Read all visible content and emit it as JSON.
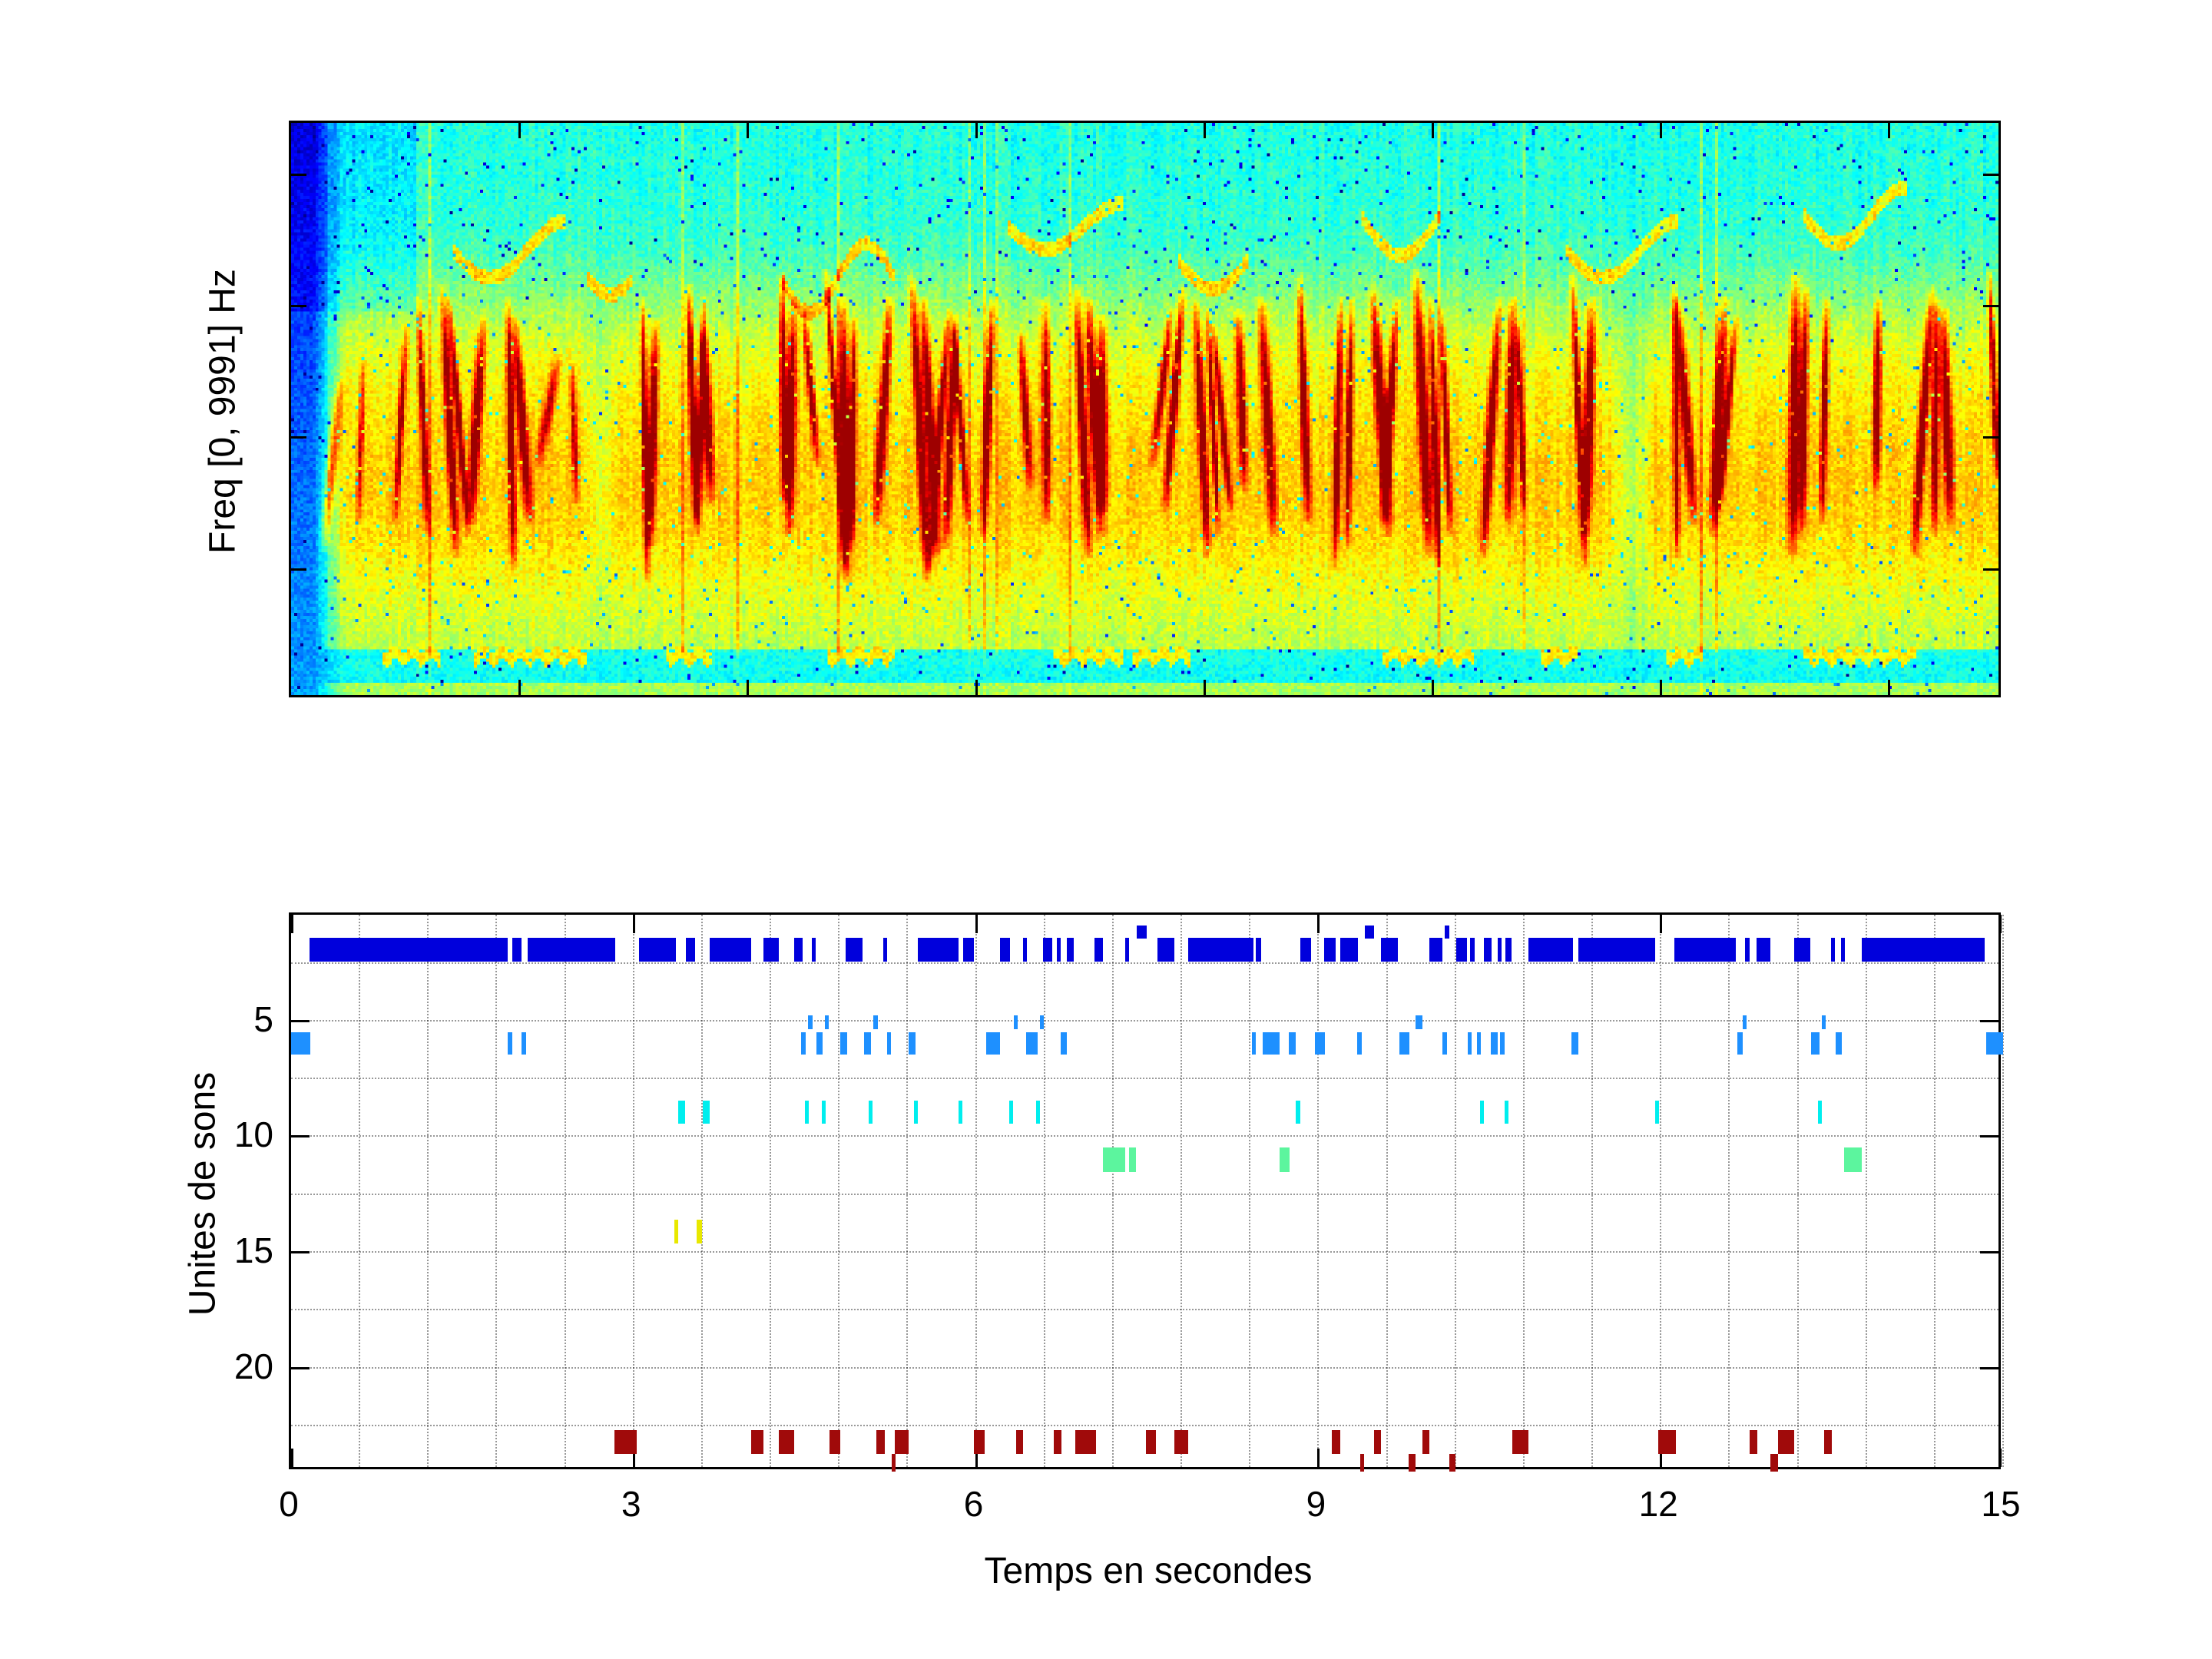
{
  "figure": {
    "background": "#ffffff",
    "top_plot": {
      "ylabel": "Freq [0, 9991] Hz"
    },
    "bottom_plot": {
      "ylabel": "Unites de sons",
      "xlabel": "Temps en secondes",
      "x_tick_labels": [
        "0",
        "3",
        "6",
        "9",
        "12",
        "15"
      ],
      "x_tick_values": [
        0,
        3,
        6,
        9,
        12,
        15
      ],
      "y_tick_labels": [
        "5",
        "10",
        "15",
        "20"
      ],
      "y_tick_values": [
        5,
        10,
        15,
        20
      ]
    }
  },
  "chart_data": [
    {
      "type": "heatmap",
      "subtype": "spectrogram",
      "ylabel": "Freq [0, 9991] Hz",
      "x_range_s": [
        0,
        15
      ],
      "freq_range_hz": [
        0,
        9991
      ],
      "colormap": "jet",
      "x_minor_ticks_s": [
        2,
        4,
        6,
        8,
        10,
        12,
        14
      ],
      "call_streaks": [
        [
          0.35,
          0.45,
          0.75,
          0.55
        ],
        [
          0.6,
          0.4,
          0.7,
          0.5
        ],
        [
          0.95,
          0.35,
          0.7,
          0.7
        ],
        [
          1.15,
          0.3,
          0.72,
          0.75
        ],
        [
          1.38,
          0.28,
          0.76,
          0.95
        ],
        [
          1.46,
          0.3,
          0.72,
          0.9
        ],
        [
          1.62,
          0.34,
          0.7,
          0.85
        ],
        [
          1.92,
          0.3,
          0.78,
          0.92
        ],
        [
          2.02,
          0.34,
          0.7,
          0.85
        ],
        [
          2.25,
          0.4,
          0.6,
          0.55
        ],
        [
          2.48,
          0.42,
          0.66,
          0.65
        ],
        [
          3.1,
          0.3,
          0.8,
          0.95
        ],
        [
          3.17,
          0.34,
          0.74,
          0.88
        ],
        [
          3.52,
          0.28,
          0.7,
          0.95
        ],
        [
          3.59,
          0.3,
          0.72,
          0.88
        ],
        [
          3.65,
          0.36,
          0.66,
          0.8
        ],
        [
          4.32,
          0.26,
          0.66,
          0.92
        ],
        [
          4.39,
          0.3,
          0.72,
          0.9
        ],
        [
          4.56,
          0.32,
          0.6,
          0.75
        ],
        [
          4.78,
          0.25,
          0.78,
          0.97
        ],
        [
          4.86,
          0.3,
          0.8,
          0.93
        ],
        [
          4.93,
          0.34,
          0.74,
          0.88
        ],
        [
          5.2,
          0.3,
          0.7,
          0.85
        ],
        [
          5.52,
          0.26,
          0.8,
          0.95
        ],
        [
          5.61,
          0.3,
          0.76,
          0.9
        ],
        [
          5.69,
          0.32,
          0.78,
          0.88
        ],
        [
          5.79,
          0.33,
          0.74,
          0.86
        ],
        [
          5.88,
          0.35,
          0.7,
          0.82
        ],
        [
          6.12,
          0.3,
          0.72,
          0.88
        ],
        [
          6.45,
          0.36,
          0.64,
          0.75
        ],
        [
          6.63,
          0.3,
          0.7,
          0.85
        ],
        [
          6.95,
          0.28,
          0.76,
          0.92
        ],
        [
          7.06,
          0.3,
          0.72,
          0.88
        ],
        [
          7.13,
          0.33,
          0.68,
          0.83
        ],
        [
          7.65,
          0.32,
          0.6,
          0.75
        ],
        [
          7.76,
          0.28,
          0.68,
          0.88
        ],
        [
          8.0,
          0.3,
          0.76,
          0.9
        ],
        [
          8.1,
          0.32,
          0.72,
          0.88
        ],
        [
          8.18,
          0.35,
          0.68,
          0.82
        ],
        [
          8.35,
          0.32,
          0.64,
          0.78
        ],
        [
          8.58,
          0.3,
          0.72,
          0.88
        ],
        [
          8.9,
          0.26,
          0.7,
          0.88
        ],
        [
          9.2,
          0.3,
          0.78,
          0.92
        ],
        [
          9.3,
          0.3,
          0.74,
          0.88
        ],
        [
          9.58,
          0.28,
          0.72,
          0.9
        ],
        [
          9.66,
          0.3,
          0.7,
          0.86
        ],
        [
          9.95,
          0.25,
          0.76,
          0.95
        ],
        [
          10.05,
          0.3,
          0.78,
          0.92
        ],
        [
          10.15,
          0.32,
          0.72,
          0.86
        ],
        [
          10.55,
          0.3,
          0.76,
          0.9
        ],
        [
          10.72,
          0.3,
          0.7,
          0.88
        ],
        [
          10.81,
          0.35,
          0.68,
          0.82
        ],
        [
          11.32,
          0.25,
          0.78,
          0.95
        ],
        [
          11.41,
          0.3,
          0.72,
          0.88
        ],
        [
          12.18,
          0.28,
          0.76,
          0.92
        ],
        [
          12.26,
          0.3,
          0.7,
          0.86
        ],
        [
          12.55,
          0.3,
          0.72,
          0.88
        ],
        [
          12.63,
          0.33,
          0.68,
          0.82
        ],
        [
          13.22,
          0.25,
          0.76,
          0.95
        ],
        [
          13.3,
          0.28,
          0.72,
          0.9
        ],
        [
          13.48,
          0.3,
          0.7,
          0.86
        ],
        [
          13.95,
          0.3,
          0.64,
          0.8
        ],
        [
          14.35,
          0.28,
          0.76,
          0.92
        ],
        [
          14.46,
          0.3,
          0.72,
          0.88
        ],
        [
          14.56,
          0.32,
          0.7,
          0.84
        ],
        [
          14.97,
          0.25,
          0.62,
          0.9
        ]
      ],
      "arcs": [
        [
          1.4,
          2.4,
          0.22,
          0.05,
          1.5
        ],
        [
          2.6,
          3.0,
          0.27,
          0.03,
          1
        ],
        [
          4.3,
          5.3,
          0.27,
          0.06,
          2
        ],
        [
          6.3,
          7.3,
          0.18,
          0.04,
          1.5
        ],
        [
          7.8,
          8.4,
          0.24,
          0.05,
          1
        ],
        [
          9.4,
          10.1,
          0.16,
          0.07,
          1
        ],
        [
          11.2,
          12.2,
          0.22,
          0.05,
          1.5
        ],
        [
          13.3,
          14.2,
          0.16,
          0.05,
          1.5
        ]
      ],
      "bottom_squiggles": [
        [
          0.8,
          1.3
        ],
        [
          1.6,
          2.6
        ],
        [
          3.3,
          3.7
        ],
        [
          4.7,
          5.3
        ],
        [
          6.7,
          7.3
        ],
        [
          7.4,
          7.9
        ],
        [
          9.6,
          10.4
        ],
        [
          11.0,
          11.3
        ],
        [
          12.1,
          12.4
        ],
        [
          13.3,
          14.3
        ]
      ]
    },
    {
      "type": "raster-intervals",
      "xlabel": "Temps en secondes",
      "ylabel": "Unites de sons",
      "x_range": [
        0,
        15
      ],
      "y_range_units": [
        0.42,
        24.5
      ],
      "y_axis_inverted": true,
      "grid": "dotted, x every 0.6 s, y every 2.5 units",
      "series": [
        {
          "name": "unit-2-navy",
          "color": "#0000DC",
          "row": [
            1.4,
            2.45
          ],
          "intervals": [
            [
              0.16,
              1.9
            ],
            [
              1.94,
              2.02
            ],
            [
              2.07,
              2.84
            ],
            [
              3.05,
              3.37
            ],
            [
              3.46,
              3.54
            ],
            [
              3.67,
              4.03
            ],
            [
              4.14,
              4.27
            ],
            [
              4.41,
              4.48
            ],
            [
              4.56,
              4.59
            ],
            [
              4.86,
              5.01
            ],
            [
              5.19,
              5.22
            ],
            [
              5.49,
              5.85
            ],
            [
              5.89,
              5.98
            ],
            [
              6.21,
              6.3
            ],
            [
              6.41,
              6.44
            ],
            [
              6.59,
              6.67
            ],
            [
              6.71,
              6.73
            ],
            [
              6.8,
              6.86
            ],
            [
              7.04,
              7.11
            ],
            [
              7.31,
              7.34
            ],
            [
              7.59,
              7.74
            ],
            [
              7.86,
              8.43
            ],
            [
              8.45,
              8.5
            ],
            [
              8.84,
              8.94
            ],
            [
              9.05,
              9.15
            ],
            [
              9.19,
              9.35
            ],
            [
              9.55,
              9.7
            ],
            [
              9.97,
              10.09
            ],
            [
              10.21,
              10.3
            ],
            [
              10.33,
              10.37
            ],
            [
              10.45,
              10.52
            ],
            [
              10.57,
              10.59
            ],
            [
              10.64,
              10.69
            ],
            [
              10.84,
              11.23
            ],
            [
              11.28,
              11.95
            ],
            [
              12.12,
              12.66
            ],
            [
              12.74,
              12.78
            ],
            [
              12.84,
              12.96
            ],
            [
              13.17,
              13.31
            ],
            [
              13.49,
              13.52
            ],
            [
              13.58,
              13.61
            ],
            [
              13.76,
              14.84
            ]
          ]
        },
        {
          "name": "unit-1-navy-ticks",
          "color": "#0000DC",
          "row": [
            0.9,
            1.45
          ],
          "intervals": [
            [
              7.41,
              7.5
            ],
            [
              9.41,
              9.49
            ],
            [
              10.11,
              10.15
            ]
          ]
        },
        {
          "name": "unit-6-blue",
          "color": "#1E90FF",
          "row": [
            5.5,
            6.47
          ],
          "intervals": [
            [
              0.0,
              0.17
            ],
            [
              1.9,
              1.94
            ],
            [
              2.02,
              2.06
            ],
            [
              4.47,
              4.51
            ],
            [
              4.6,
              4.66
            ],
            [
              4.81,
              4.87
            ],
            [
              5.02,
              5.08
            ],
            [
              5.22,
              5.25
            ],
            [
              5.41,
              5.47
            ],
            [
              6.09,
              6.21
            ],
            [
              6.44,
              6.54
            ],
            [
              6.74,
              6.8
            ],
            [
              8.42,
              8.45
            ],
            [
              8.51,
              8.66
            ],
            [
              8.74,
              8.8
            ],
            [
              8.97,
              9.06
            ],
            [
              9.34,
              9.38
            ],
            [
              9.71,
              9.8
            ],
            [
              10.09,
              10.13
            ],
            [
              10.31,
              10.34
            ],
            [
              10.39,
              10.42
            ],
            [
              10.51,
              10.57
            ],
            [
              10.59,
              10.63
            ],
            [
              11.22,
              11.28
            ],
            [
              12.67,
              12.72
            ],
            [
              13.32,
              13.39
            ],
            [
              13.53,
              13.59
            ],
            [
              14.85,
              15.0
            ]
          ]
        },
        {
          "name": "unit-5-blue-ticks",
          "color": "#1E90FF",
          "row": [
            4.78,
            5.38
          ],
          "intervals": [
            [
              4.53,
              4.57
            ],
            [
              4.68,
              4.71
            ],
            [
              5.1,
              5.14
            ],
            [
              6.33,
              6.36
            ],
            [
              6.56,
              6.59
            ],
            [
              9.85,
              9.91
            ],
            [
              12.72,
              12.75
            ],
            [
              13.41,
              13.44
            ]
          ]
        },
        {
          "name": "unit-9-cyan",
          "color": "#00EEEE",
          "row": [
            8.45,
            9.45
          ],
          "intervals": [
            [
              3.39,
              3.45
            ],
            [
              3.61,
              3.67
            ],
            [
              4.5,
              4.53
            ],
            [
              4.65,
              4.68
            ],
            [
              5.06,
              5.09
            ],
            [
              5.46,
              5.49
            ],
            [
              5.85,
              5.87
            ],
            [
              6.29,
              6.32
            ],
            [
              6.53,
              6.56
            ],
            [
              8.8,
              8.84
            ],
            [
              10.42,
              10.45
            ],
            [
              10.63,
              10.66
            ],
            [
              11.95,
              11.98
            ],
            [
              13.38,
              13.41
            ]
          ]
        },
        {
          "name": "unit-11-green",
          "color": "#5CF59E",
          "row": [
            10.5,
            11.55
          ],
          "intervals": [
            [
              7.11,
              7.31
            ],
            [
              7.34,
              7.4
            ],
            [
              8.66,
              8.75
            ],
            [
              13.61,
              13.76
            ]
          ]
        },
        {
          "name": "unit-14-yellow",
          "color": "#E8E800",
          "row": [
            13.6,
            14.65
          ],
          "intervals": [
            [
              3.36,
              3.39
            ],
            [
              3.55,
              3.6
            ]
          ]
        },
        {
          "name": "unit-23-darkred",
          "color": "#A00A0A",
          "row": [
            22.7,
            23.75
          ],
          "intervals": [
            [
              2.83,
              3.03
            ],
            [
              4.03,
              4.14
            ],
            [
              4.27,
              4.41
            ],
            [
              4.72,
              4.81
            ],
            [
              5.13,
              5.2
            ],
            [
              5.29,
              5.41
            ],
            [
              5.98,
              6.08
            ],
            [
              6.35,
              6.41
            ],
            [
              6.68,
              6.75
            ],
            [
              6.87,
              7.05
            ],
            [
              7.49,
              7.58
            ],
            [
              7.74,
              7.86
            ],
            [
              9.12,
              9.19
            ],
            [
              9.49,
              9.55
            ],
            [
              9.91,
              9.97
            ],
            [
              10.7,
              10.84
            ],
            [
              11.98,
              12.13
            ],
            [
              12.78,
              12.85
            ],
            [
              13.03,
              13.17
            ],
            [
              13.43,
              13.5
            ]
          ]
        },
        {
          "name": "unit-24-darkred-ticks",
          "color": "#A00A0A",
          "row": [
            23.75,
            24.5
          ],
          "intervals": [
            [
              5.26,
              5.28
            ],
            [
              9.37,
              9.4
            ],
            [
              9.79,
              9.85
            ],
            [
              10.15,
              10.2
            ],
            [
              12.96,
              13.03
            ]
          ]
        }
      ]
    }
  ]
}
